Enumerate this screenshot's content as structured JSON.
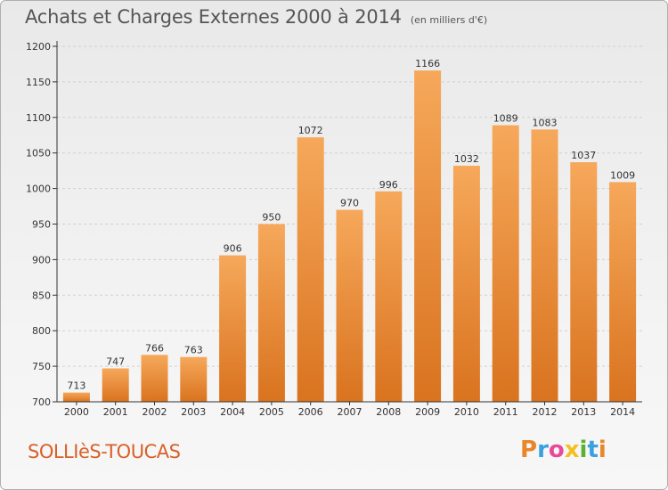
{
  "header": {
    "title": "Achats et Charges Externes 2000 à 2014",
    "subtitle": "(en milliers d'€)"
  },
  "footer": {
    "commune": "SOLLIèS-TOUCAS",
    "brand": "Proxiti",
    "brand_colors": [
      "#e8862a",
      "#3aa0e0",
      "#e84a9a",
      "#f4c020",
      "#5ab030",
      "#3aa0e0",
      "#e8862a"
    ]
  },
  "colors": {
    "bar_light": "#f6a85a",
    "bar_dark": "#d9731f",
    "axis": "#333333",
    "grid": "#d0d0d0"
  },
  "chart_data": {
    "type": "bar",
    "categories": [
      "2000",
      "2001",
      "2002",
      "2003",
      "2004",
      "2005",
      "2006",
      "2007",
      "2008",
      "2009",
      "2010",
      "2011",
      "2012",
      "2013",
      "2014"
    ],
    "values": [
      713,
      747,
      766,
      763,
      906,
      950,
      1072,
      970,
      996,
      1166,
      1032,
      1089,
      1083,
      1037,
      1009
    ],
    "ylim": [
      700,
      1200
    ],
    "yticks": [
      700,
      750,
      800,
      850,
      900,
      950,
      1000,
      1050,
      1100,
      1150,
      1200
    ],
    "grid": true
  }
}
